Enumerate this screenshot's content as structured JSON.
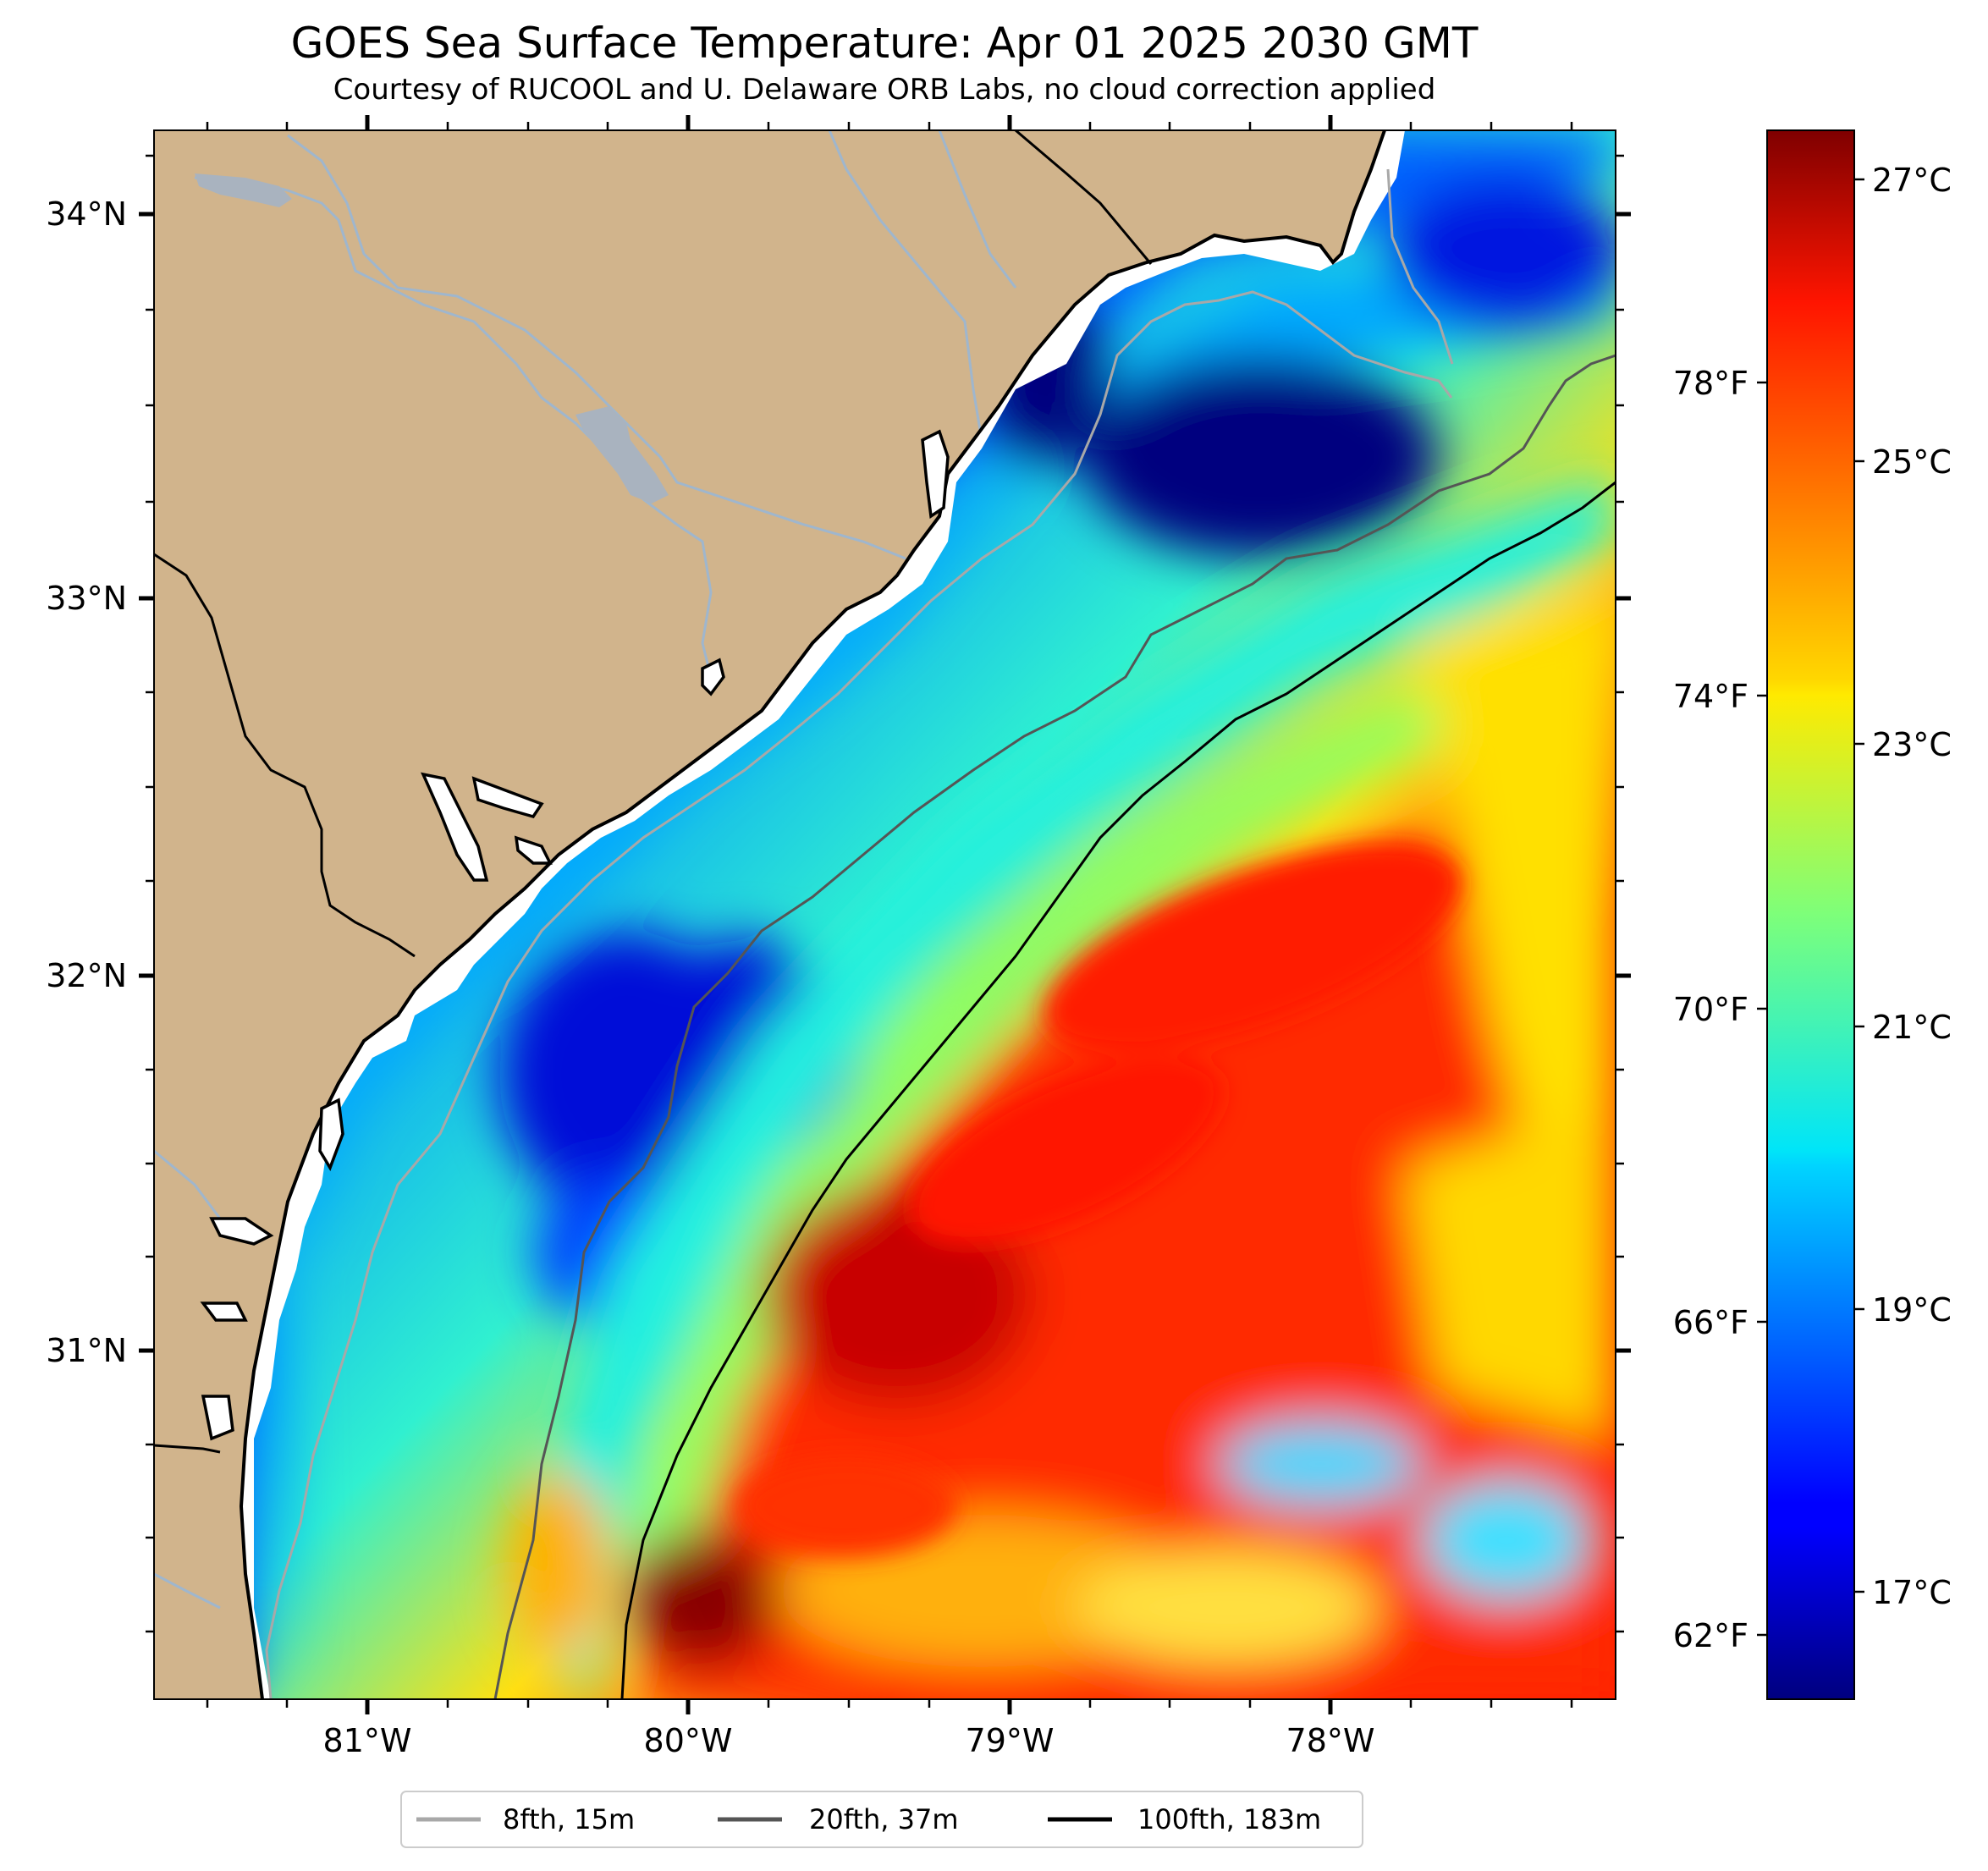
{
  "title": "GOES Sea Surface Temperature: Apr 01 2025 2030 GMT",
  "subtitle": "Courtesy of RUCOOL and U. Delaware ORB Labs, no cloud correction applied",
  "map": {
    "lat_ticks": [
      "34°N",
      "33°N",
      "32°N",
      "31°N"
    ],
    "lon_ticks": [
      "81°W",
      "80°W",
      "79°W",
      "78°W"
    ],
    "lat_range": [
      30.1,
      34.22
    ],
    "lon_range": [
      81.67,
      77.12
    ],
    "colors": {
      "land": "#d1b48c",
      "river": "#9fb6cd",
      "coast": "#000000"
    }
  },
  "colorbar": {
    "celsius_ticks": [
      "27°C",
      "25°C",
      "23°C",
      "21°C",
      "19°C",
      "17°C"
    ],
    "fahrenheit_ticks": [
      "78°F",
      "74°F",
      "70°F",
      "66°F",
      "62°F"
    ],
    "range_c": [
      16.2,
      27.3
    ],
    "colormap": "jet"
  },
  "legend": {
    "items": [
      {
        "label": "8fth, 15m",
        "color": "#a8a8a8"
      },
      {
        "label": "20fth, 37m",
        "color": "#555555"
      },
      {
        "label": "100fth, 183m",
        "color": "#000000"
      }
    ]
  }
}
